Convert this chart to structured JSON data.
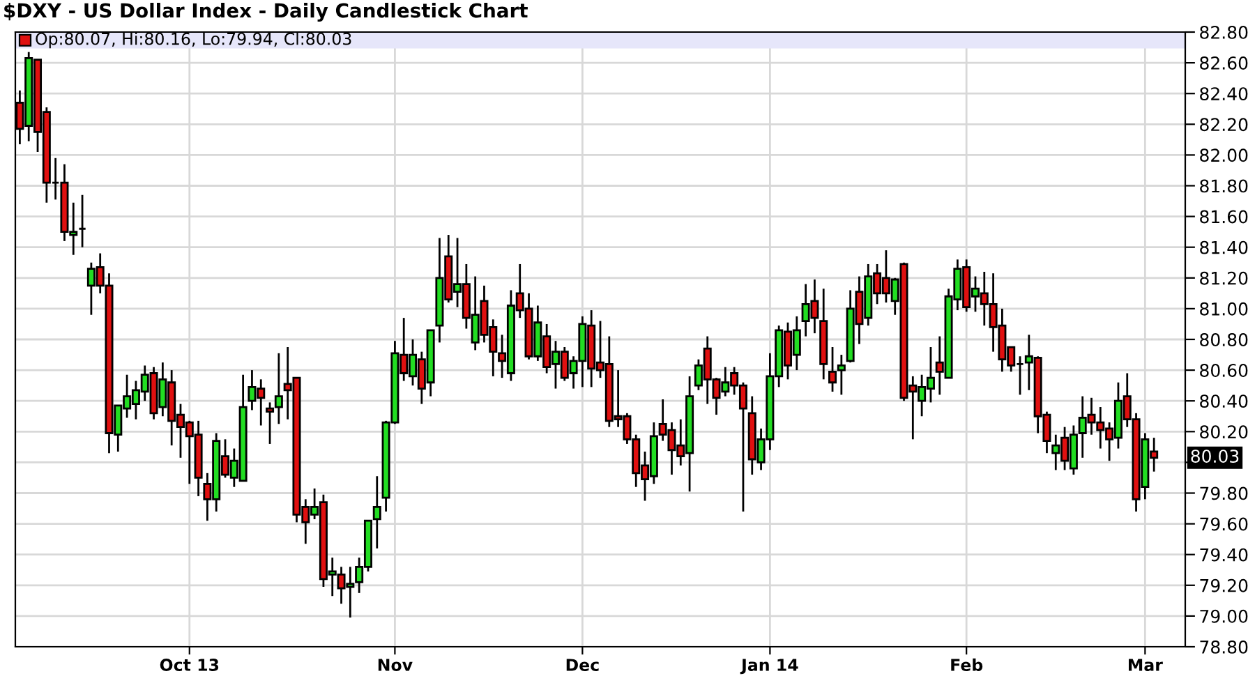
{
  "chart_data": {
    "type": "candlestick",
    "title": "$DXY - US Dollar Index - Daily Candlestick Chart",
    "annotations": [
      "Op:80.07, Hi:80.16, Lo:79.94, Cl:80.03",
      "80.03"
    ],
    "categories": [
      null,
      null,
      null,
      null,
      null,
      null,
      null,
      null,
      null,
      null,
      null,
      null,
      null,
      null,
      null,
      null,
      null,
      null,
      null,
      "Oct 13",
      null,
      null,
      null,
      null,
      null,
      null,
      null,
      null,
      null,
      null,
      null,
      null,
      null,
      null,
      null,
      null,
      null,
      null,
      null,
      null,
      null,
      null,
      "Nov",
      null,
      null,
      null,
      null,
      null,
      null,
      null,
      null,
      null,
      null,
      null,
      null,
      null,
      null,
      null,
      null,
      null,
      null,
      null,
      null,
      "Dec",
      null,
      null,
      null,
      null,
      null,
      null,
      null,
      null,
      null,
      null,
      null,
      null,
      null,
      null,
      null,
      null,
      null,
      null,
      null,
      null,
      "Jan 14",
      null,
      null,
      null,
      null,
      null,
      null,
      null,
      null,
      null,
      null,
      null,
      null,
      null,
      null,
      null,
      null,
      null,
      null,
      null,
      null,
      null,
      "Feb",
      null,
      null,
      null,
      null,
      null,
      null,
      null,
      null,
      null,
      null,
      null,
      null,
      null,
      null,
      null,
      null,
      null,
      null,
      null,
      "Mar",
      null
    ],
    "ohlc": [
      [
        82.34,
        82.42,
        82.07,
        82.17
      ],
      [
        82.19,
        82.67,
        82.09,
        82.63
      ],
      [
        82.62,
        82.62,
        82.02,
        82.15
      ],
      [
        82.28,
        82.31,
        81.69,
        81.82
      ],
      [
        81.82,
        81.98,
        81.71,
        81.82
      ],
      [
        81.82,
        81.94,
        81.44,
        81.5
      ],
      [
        81.48,
        81.69,
        81.35,
        81.5
      ],
      [
        81.52,
        81.74,
        81.4,
        81.52
      ],
      [
        81.15,
        81.3,
        80.96,
        81.26
      ],
      [
        81.27,
        81.36,
        81.1,
        81.15
      ],
      [
        81.15,
        81.23,
        80.06,
        80.19
      ],
      [
        80.18,
        80.37,
        80.07,
        80.37
      ],
      [
        80.35,
        80.57,
        80.29,
        80.43
      ],
      [
        80.38,
        80.53,
        80.28,
        80.47
      ],
      [
        80.46,
        80.63,
        80.4,
        80.57
      ],
      [
        80.58,
        80.62,
        80.28,
        80.32
      ],
      [
        80.36,
        80.65,
        80.3,
        80.54
      ],
      [
        80.52,
        80.6,
        80.11,
        80.27
      ],
      [
        80.31,
        80.38,
        80.03,
        80.23
      ],
      [
        80.26,
        80.27,
        79.86,
        80.17
      ],
      [
        80.18,
        80.27,
        79.78,
        79.9
      ],
      [
        79.86,
        79.93,
        79.62,
        79.76
      ],
      [
        79.76,
        80.19,
        79.68,
        80.14
      ],
      [
        80.04,
        80.15,
        79.9,
        79.92
      ],
      [
        79.9,
        80.09,
        79.84,
        80.01
      ],
      [
        79.88,
        80.57,
        79.88,
        80.36
      ],
      [
        80.4,
        80.6,
        80.34,
        80.49
      ],
      [
        80.48,
        80.54,
        80.24,
        80.42
      ],
      [
        80.35,
        80.39,
        80.12,
        80.33
      ],
      [
        80.36,
        80.71,
        80.25,
        80.43
      ],
      [
        80.51,
        80.75,
        80.28,
        80.47
      ],
      [
        80.55,
        80.55,
        79.61,
        79.66
      ],
      [
        79.71,
        79.76,
        79.47,
        79.61
      ],
      [
        79.66,
        79.83,
        79.63,
        79.71
      ],
      [
        79.74,
        79.79,
        79.19,
        79.24
      ],
      [
        79.27,
        79.38,
        79.13,
        79.29
      ],
      [
        79.27,
        79.32,
        79.08,
        79.18
      ],
      [
        79.19,
        79.32,
        78.99,
        79.21
      ],
      [
        79.22,
        79.38,
        79.15,
        79.32
      ],
      [
        79.32,
        79.62,
        79.29,
        79.62
      ],
      [
        79.63,
        79.91,
        79.44,
        79.71
      ],
      [
        79.77,
        80.27,
        79.68,
        80.26
      ],
      [
        80.26,
        80.79,
        80.25,
        80.71
      ],
      [
        80.7,
        80.94,
        80.53,
        80.58
      ],
      [
        80.56,
        80.8,
        80.5,
        80.7
      ],
      [
        80.67,
        80.72,
        80.38,
        80.48
      ],
      [
        80.52,
        80.86,
        80.43,
        80.86
      ],
      [
        80.89,
        81.46,
        80.78,
        81.2
      ],
      [
        81.34,
        81.48,
        81.04,
        81.06
      ],
      [
        81.11,
        81.46,
        81.01,
        81.16
      ],
      [
        81.16,
        81.29,
        80.87,
        80.94
      ],
      [
        80.78,
        81.21,
        80.73,
        80.96
      ],
      [
        81.05,
        81.15,
        80.78,
        80.83
      ],
      [
        80.88,
        80.93,
        80.56,
        80.72
      ],
      [
        80.71,
        80.83,
        80.55,
        80.66
      ],
      [
        80.58,
        81.12,
        80.53,
        81.02
      ],
      [
        81.1,
        81.29,
        80.94,
        80.99
      ],
      [
        81.0,
        81.1,
        80.67,
        80.69
      ],
      [
        80.69,
        81.02,
        80.66,
        80.91
      ],
      [
        80.82,
        80.9,
        80.58,
        80.62
      ],
      [
        80.64,
        80.79,
        80.48,
        80.72
      ],
      [
        80.72,
        80.75,
        80.53,
        80.55
      ],
      [
        80.58,
        80.69,
        80.48,
        80.66
      ],
      [
        80.66,
        80.95,
        80.49,
        80.9
      ],
      [
        80.89,
        80.99,
        80.49,
        80.61
      ],
      [
        80.65,
        80.92,
        80.55,
        80.6
      ],
      [
        80.64,
        80.82,
        80.23,
        80.27
      ],
      [
        80.3,
        80.6,
        80.23,
        80.28
      ],
      [
        80.3,
        80.32,
        80.12,
        80.15
      ],
      [
        80.15,
        80.18,
        79.84,
        79.93
      ],
      [
        79.98,
        80.07,
        79.75,
        79.89
      ],
      [
        79.91,
        80.26,
        79.86,
        80.17
      ],
      [
        80.25,
        80.41,
        80.14,
        80.18
      ],
      [
        80.21,
        80.26,
        79.92,
        80.08
      ],
      [
        80.11,
        80.28,
        79.98,
        80.04
      ],
      [
        80.06,
        80.56,
        79.81,
        80.43
      ],
      [
        80.5,
        80.67,
        80.47,
        80.63
      ],
      [
        80.74,
        80.82,
        80.38,
        80.54
      ],
      [
        80.54,
        80.55,
        80.31,
        80.42
      ],
      [
        80.46,
        80.62,
        80.43,
        80.52
      ],
      [
        80.58,
        80.62,
        80.44,
        80.5
      ],
      [
        80.5,
        80.52,
        79.68,
        80.35
      ],
      [
        80.32,
        80.43,
        79.92,
        80.02
      ],
      [
        80.0,
        80.22,
        79.95,
        80.15
      ],
      [
        80.15,
        80.71,
        80.08,
        80.56
      ],
      [
        80.56,
        80.89,
        80.49,
        80.86
      ],
      [
        80.85,
        80.91,
        80.54,
        80.63
      ],
      [
        80.7,
        80.95,
        80.6,
        80.86
      ],
      [
        80.92,
        81.16,
        80.82,
        81.03
      ],
      [
        81.05,
        81.19,
        80.84,
        80.94
      ],
      [
        80.92,
        81.13,
        80.54,
        80.64
      ],
      [
        80.59,
        80.75,
        80.46,
        80.52
      ],
      [
        80.6,
        80.7,
        80.44,
        80.63
      ],
      [
        80.66,
        81.12,
        80.65,
        81.0
      ],
      [
        81.11,
        81.21,
        80.77,
        80.9
      ],
      [
        80.94,
        81.29,
        80.89,
        81.21
      ],
      [
        81.23,
        81.29,
        81.03,
        81.1
      ],
      [
        81.2,
        81.38,
        81.04,
        81.1
      ],
      [
        81.05,
        81.2,
        80.96,
        81.19
      ],
      [
        81.29,
        81.3,
        80.4,
        80.42
      ],
      [
        80.5,
        80.56,
        80.15,
        80.46
      ],
      [
        80.4,
        80.57,
        80.3,
        80.49
      ],
      [
        80.48,
        80.75,
        80.39,
        80.55
      ],
      [
        80.65,
        80.82,
        80.44,
        80.59
      ],
      [
        80.55,
        81.13,
        80.55,
        81.08
      ],
      [
        81.06,
        81.32,
        80.99,
        81.26
      ],
      [
        81.27,
        81.32,
        80.98,
        81.01
      ],
      [
        81.08,
        81.21,
        80.98,
        81.13
      ],
      [
        81.1,
        81.24,
        80.89,
        81.03
      ],
      [
        81.03,
        81.23,
        80.72,
        80.88
      ],
      [
        80.89,
        81.0,
        80.59,
        80.67
      ],
      [
        80.75,
        80.75,
        80.59,
        80.63
      ],
      [
        80.64,
        80.69,
        80.44,
        80.64
      ],
      [
        80.65,
        80.83,
        80.47,
        80.69
      ],
      [
        80.68,
        80.69,
        80.19,
        80.3
      ],
      [
        80.31,
        80.33,
        80.06,
        80.14
      ],
      [
        80.06,
        80.18,
        79.95,
        80.11
      ],
      [
        80.16,
        80.23,
        79.95,
        80.01
      ],
      [
        79.96,
        80.24,
        79.92,
        80.18
      ],
      [
        80.19,
        80.43,
        80.03,
        80.29
      ],
      [
        80.31,
        80.42,
        80.18,
        80.26
      ],
      [
        80.26,
        80.36,
        80.09,
        80.21
      ],
      [
        80.22,
        80.26,
        80.01,
        80.15
      ],
      [
        80.16,
        80.52,
        80.09,
        80.4
      ],
      [
        80.43,
        80.58,
        80.23,
        80.28
      ],
      [
        80.28,
        80.32,
        79.68,
        79.76
      ],
      [
        79.84,
        80.19,
        79.76,
        80.15
      ],
      [
        80.07,
        80.16,
        79.94,
        80.03
      ]
    ],
    "colors": [
      "#e01010",
      "#22dd22",
      "#e01010",
      "#e01010",
      "#000000",
      "#e01010",
      "#22dd22",
      "#000000",
      "#22dd22",
      "#e01010",
      "#e01010",
      "#22dd22",
      "#22dd22",
      "#22dd22",
      "#22dd22",
      "#e01010",
      "#22dd22",
      "#e01010",
      "#e01010",
      "#e01010",
      "#e01010",
      "#e01010",
      "#22dd22",
      "#e01010",
      "#22dd22",
      "#22dd22",
      "#22dd22",
      "#e01010",
      "#e01010",
      "#22dd22",
      "#e01010",
      "#e01010",
      "#e01010",
      "#22dd22",
      "#e01010",
      "#22dd22",
      "#e01010",
      "#22dd22",
      "#22dd22",
      "#22dd22",
      "#22dd22",
      "#22dd22",
      "#22dd22",
      "#e01010",
      "#22dd22",
      "#e01010",
      "#22dd22",
      "#22dd22",
      "#e01010",
      "#22dd22",
      "#e01010",
      "#22dd22",
      "#e01010",
      "#e01010",
      "#e01010",
      "#22dd22",
      "#e01010",
      "#e01010",
      "#22dd22",
      "#e01010",
      "#22dd22",
      "#e01010",
      "#22dd22",
      "#22dd22",
      "#e01010",
      "#e01010",
      "#e01010",
      "#e01010",
      "#e01010",
      "#e01010",
      "#e01010",
      "#22dd22",
      "#e01010",
      "#e01010",
      "#e01010",
      "#22dd22",
      "#22dd22",
      "#e01010",
      "#e01010",
      "#22dd22",
      "#e01010",
      "#e01010",
      "#e01010",
      "#22dd22",
      "#22dd22",
      "#22dd22",
      "#e01010",
      "#22dd22",
      "#22dd22",
      "#e01010",
      "#e01010",
      "#e01010",
      "#22dd22",
      "#22dd22",
      "#e01010",
      "#22dd22",
      "#e01010",
      "#e01010",
      "#22dd22",
      "#e01010",
      "#e01010",
      "#22dd22",
      "#22dd22",
      "#e01010",
      "#22dd22",
      "#22dd22",
      "#e01010",
      "#22dd22",
      "#e01010",
      "#e01010",
      "#e01010",
      "#e01010",
      "#000000",
      "#22dd22",
      "#e01010",
      "#e01010",
      "#22dd22",
      "#e01010",
      "#22dd22",
      "#22dd22",
      "#e01010",
      "#e01010",
      "#e01010",
      "#22dd22",
      "#e01010",
      "#e01010",
      "#22dd22",
      "#e01010"
    ],
    "ylim": [
      78.8,
      82.8
    ],
    "yticks": [
      {
        "value": 78.8,
        "label": "78.80"
      },
      {
        "value": 79.0,
        "label": "79.00"
      },
      {
        "value": 79.2,
        "label": "79.20"
      },
      {
        "value": 79.4,
        "label": "79.40"
      },
      {
        "value": 79.6,
        "label": "79.60"
      },
      {
        "value": 79.8,
        "label": "79.80"
      },
      {
        "value": 80.0,
        "label": null
      },
      {
        "value": 80.2,
        "label": "80.20"
      },
      {
        "value": 80.4,
        "label": "80.40"
      },
      {
        "value": 80.6,
        "label": "80.60"
      },
      {
        "value": 80.8,
        "label": "80.80"
      },
      {
        "value": 81.0,
        "label": "81.00"
      },
      {
        "value": 81.2,
        "label": "81.20"
      },
      {
        "value": 81.4,
        "label": "81.40"
      },
      {
        "value": 81.6,
        "label": "81.60"
      },
      {
        "value": 81.8,
        "label": "81.80"
      },
      {
        "value": 82.0,
        "label": "82.00"
      },
      {
        "value": 82.2,
        "label": "82.20"
      },
      {
        "value": 82.4,
        "label": "82.40"
      },
      {
        "value": 82.6,
        "label": "82.60"
      },
      {
        "value": 82.8,
        "label": "82.80"
      }
    ],
    "grid": true
  }
}
